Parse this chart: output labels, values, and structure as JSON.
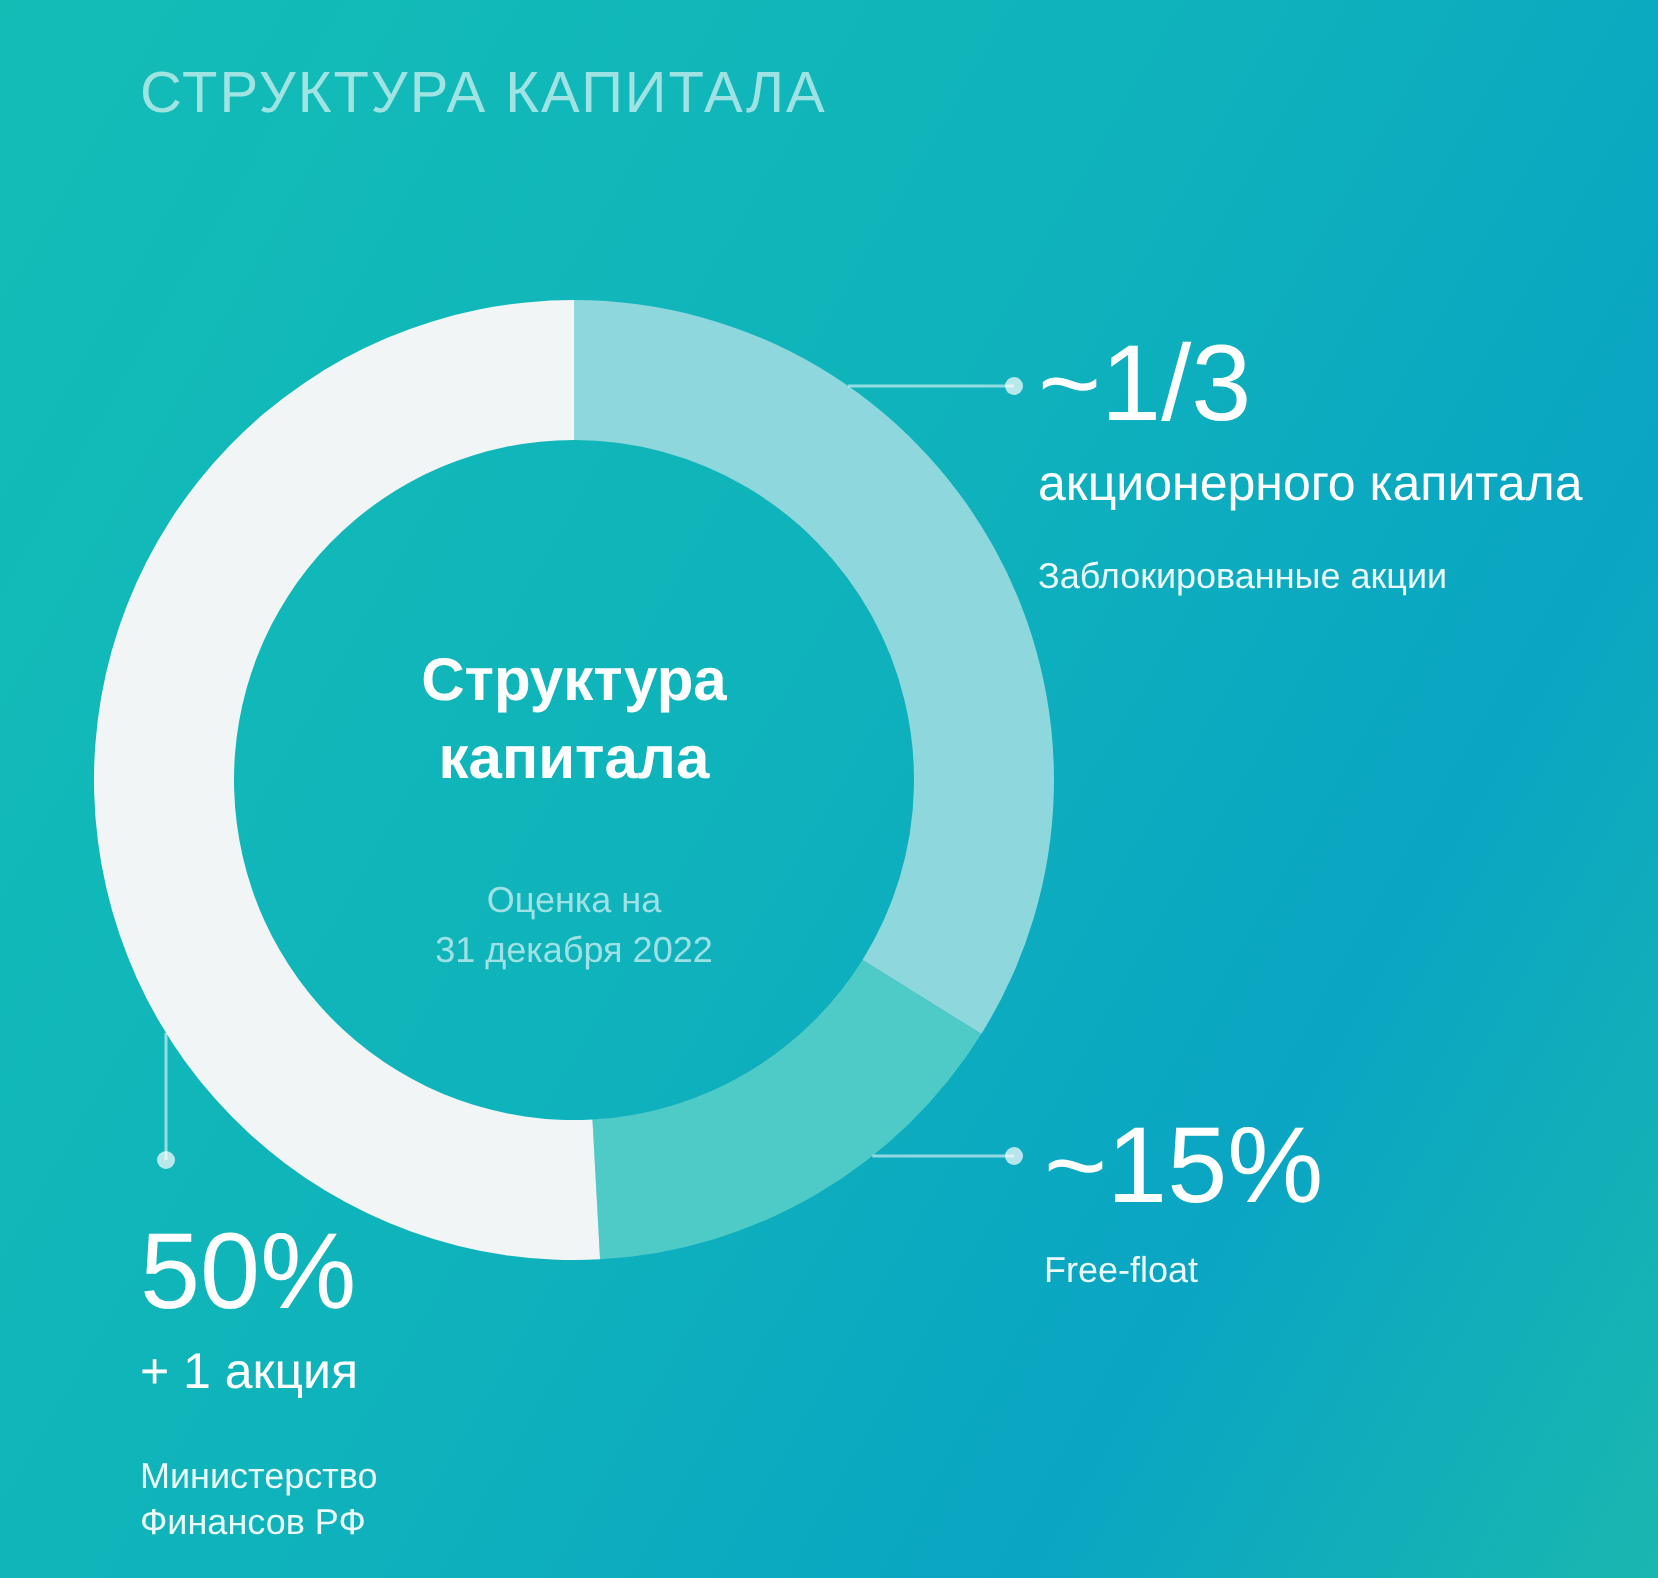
{
  "chart_data": {
    "type": "donut",
    "title": "СТРУКТУРА КАПИТАЛА",
    "categories": [
      "Заблокированные акции",
      "Free-float",
      "Министерство Финансов РФ"
    ],
    "values": [
      33.3,
      15,
      50
    ],
    "colors": [
      "#8dd7dd",
      "#4ecbc7",
      "#f1f5f6"
    ],
    "value_labels": [
      "~1/3",
      "~15%",
      "50%"
    ],
    "annotations": [
      "Структура капитала",
      "Оценка на\n31 декабря 2022",
      "акционерного капитала",
      "+ 1 акция"
    ]
  }
}
